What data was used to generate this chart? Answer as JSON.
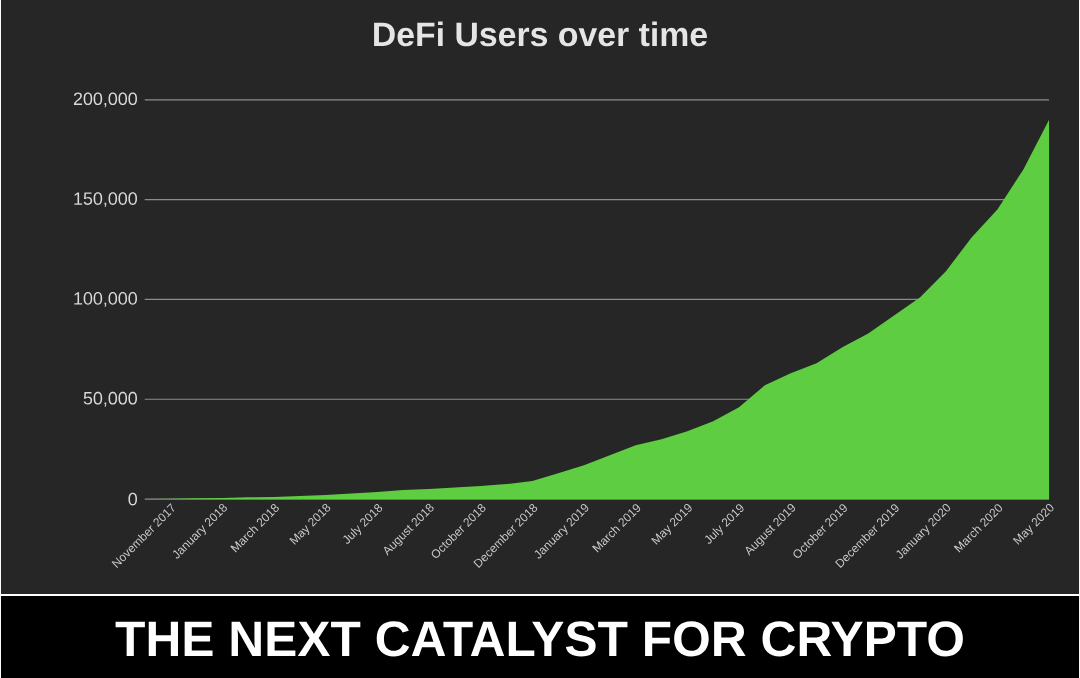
{
  "chart_data": {
    "type": "area",
    "title": "DeFi Users over time",
    "categories": [
      null,
      "November 2017",
      null,
      "January 2018",
      null,
      "March 2018",
      null,
      "May 2018",
      null,
      "July 2018",
      null,
      "August 2018",
      null,
      "October 2018",
      null,
      "December 2018",
      null,
      "January 2019",
      null,
      "March 2019",
      null,
      "May 2019",
      null,
      "July 2019",
      null,
      "August 2019",
      null,
      "October 2019",
      null,
      "December 2019",
      null,
      "January 2020",
      null,
      "March 2020",
      null,
      "May 2020"
    ],
    "values": [
      0,
      200,
      400,
      600,
      900,
      1100,
      1500,
      2000,
      2800,
      3500,
      4500,
      5000,
      5800,
      6500,
      7500,
      9000,
      13000,
      17000,
      22000,
      27000,
      30000,
      34000,
      39000,
      46000,
      57000,
      63000,
      68000,
      76000,
      83000,
      92000,
      101000,
      114000,
      131000,
      145000,
      165000,
      190000
    ],
    "color": "#5fcd42",
    "ylim": [
      0,
      200000
    ],
    "yticks": [
      0,
      {
        "value": 50000,
        "label": "50,000"
      },
      {
        "value": 100000,
        "label": "100,000"
      },
      {
        "value": 150000,
        "label": "150,000"
      },
      {
        "value": 200000,
        "label": "200,000"
      }
    ],
    "grid": "y",
    "annotations": [
      "THE NEXT CATALYST FOR CRYPTO"
    ]
  }
}
